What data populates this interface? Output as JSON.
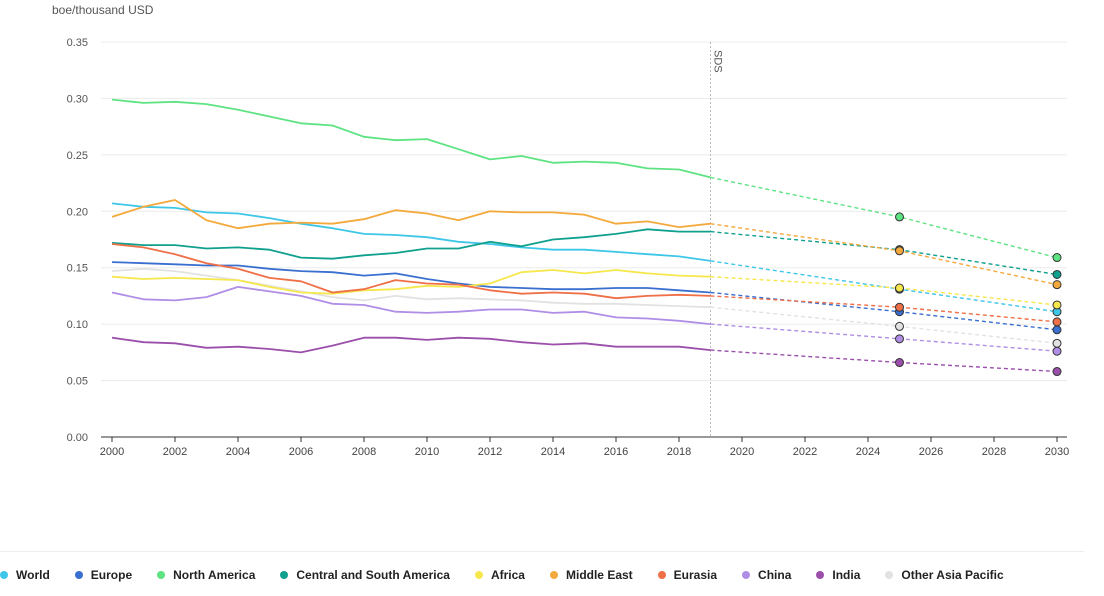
{
  "chart_data": {
    "type": "line",
    "ylabel": "boe/thousand USD",
    "ylim": [
      0,
      0.35
    ],
    "yticks": [
      "0.00",
      "0.05",
      "0.10",
      "0.15",
      "0.20",
      "0.25",
      "0.30",
      "0.35"
    ],
    "xlim": [
      2000,
      2030
    ],
    "xticks": [
      "2000",
      "2002",
      "2004",
      "2006",
      "2008",
      "2010",
      "2012",
      "2014",
      "2016",
      "2018",
      "2020",
      "2022",
      "2024",
      "2026",
      "2028",
      "2030"
    ],
    "annotation": {
      "label": "SDS",
      "x": 2019
    },
    "grid": true,
    "legend_position": "bottom",
    "series": [
      {
        "name": "World",
        "color": "#3ec6e8",
        "history": [
          [
            2000,
            0.207
          ],
          [
            2001,
            0.204
          ],
          [
            2002,
            0.203
          ],
          [
            2003,
            0.199
          ],
          [
            2004,
            0.198
          ],
          [
            2005,
            0.194
          ],
          [
            2006,
            0.189
          ],
          [
            2007,
            0.185
          ],
          [
            2008,
            0.18
          ],
          [
            2009,
            0.179
          ],
          [
            2010,
            0.177
          ],
          [
            2011,
            0.173
          ],
          [
            2012,
            0.171
          ],
          [
            2013,
            0.168
          ],
          [
            2014,
            0.166
          ],
          [
            2015,
            0.166
          ],
          [
            2016,
            0.164
          ],
          [
            2017,
            0.162
          ],
          [
            2018,
            0.16
          ],
          [
            2019,
            0.156
          ]
        ],
        "projection": [
          [
            2019,
            0.156
          ],
          [
            2025,
            0.131
          ],
          [
            2030,
            0.111
          ]
        ]
      },
      {
        "name": "Europe",
        "color": "#3a6fd0",
        "history": [
          [
            2000,
            0.155
          ],
          [
            2001,
            0.154
          ],
          [
            2002,
            0.153
          ],
          [
            2003,
            0.152
          ],
          [
            2004,
            0.152
          ],
          [
            2005,
            0.149
          ],
          [
            2006,
            0.147
          ],
          [
            2007,
            0.146
          ],
          [
            2008,
            0.143
          ],
          [
            2009,
            0.145
          ],
          [
            2010,
            0.14
          ],
          [
            2011,
            0.136
          ],
          [
            2012,
            0.133
          ],
          [
            2013,
            0.132
          ],
          [
            2014,
            0.131
          ],
          [
            2015,
            0.131
          ],
          [
            2016,
            0.132
          ],
          [
            2017,
            0.132
          ],
          [
            2018,
            0.13
          ],
          [
            2019,
            0.128
          ]
        ],
        "projection": [
          [
            2019,
            0.128
          ],
          [
            2025,
            0.111
          ],
          [
            2030,
            0.095
          ]
        ]
      },
      {
        "name": "North America",
        "color": "#5ee383",
        "history": [
          [
            2000,
            0.299
          ],
          [
            2001,
            0.296
          ],
          [
            2002,
            0.297
          ],
          [
            2003,
            0.295
          ],
          [
            2004,
            0.29
          ],
          [
            2005,
            0.284
          ],
          [
            2006,
            0.278
          ],
          [
            2007,
            0.276
          ],
          [
            2008,
            0.266
          ],
          [
            2009,
            0.263
          ],
          [
            2010,
            0.264
          ],
          [
            2011,
            0.255
          ],
          [
            2012,
            0.246
          ],
          [
            2013,
            0.249
          ],
          [
            2014,
            0.243
          ],
          [
            2015,
            0.244
          ],
          [
            2016,
            0.243
          ],
          [
            2017,
            0.238
          ],
          [
            2018,
            0.237
          ],
          [
            2019,
            0.23
          ]
        ],
        "projection": [
          [
            2019,
            0.23
          ],
          [
            2025,
            0.195
          ],
          [
            2030,
            0.159
          ]
        ]
      },
      {
        "name": "Central and South America",
        "color": "#0fa08e",
        "history": [
          [
            2000,
            0.172
          ],
          [
            2001,
            0.17
          ],
          [
            2002,
            0.17
          ],
          [
            2003,
            0.167
          ],
          [
            2004,
            0.168
          ],
          [
            2005,
            0.166
          ],
          [
            2006,
            0.159
          ],
          [
            2007,
            0.158
          ],
          [
            2008,
            0.161
          ],
          [
            2009,
            0.163
          ],
          [
            2010,
            0.167
          ],
          [
            2011,
            0.167
          ],
          [
            2012,
            0.173
          ],
          [
            2013,
            0.169
          ],
          [
            2014,
            0.175
          ],
          [
            2015,
            0.177
          ],
          [
            2016,
            0.18
          ],
          [
            2017,
            0.184
          ],
          [
            2018,
            0.182
          ],
          [
            2019,
            0.182
          ]
        ],
        "projection": [
          [
            2019,
            0.182
          ],
          [
            2025,
            0.166
          ],
          [
            2030,
            0.144
          ]
        ]
      },
      {
        "name": "Africa",
        "color": "#f6e74d",
        "history": [
          [
            2000,
            0.142
          ],
          [
            2001,
            0.14
          ],
          [
            2002,
            0.141
          ],
          [
            2003,
            0.14
          ],
          [
            2004,
            0.139
          ],
          [
            2005,
            0.133
          ],
          [
            2006,
            0.128
          ],
          [
            2007,
            0.127
          ],
          [
            2008,
            0.13
          ],
          [
            2009,
            0.131
          ],
          [
            2010,
            0.134
          ],
          [
            2011,
            0.133
          ],
          [
            2012,
            0.136
          ],
          [
            2013,
            0.146
          ],
          [
            2014,
            0.148
          ],
          [
            2015,
            0.145
          ],
          [
            2016,
            0.148
          ],
          [
            2017,
            0.145
          ],
          [
            2018,
            0.143
          ],
          [
            2019,
            0.142
          ]
        ],
        "projection": [
          [
            2019,
            0.142
          ],
          [
            2025,
            0.132
          ],
          [
            2030,
            0.117
          ]
        ]
      },
      {
        "name": "Middle East",
        "color": "#f3a93c",
        "history": [
          [
            2000,
            0.195
          ],
          [
            2001,
            0.204
          ],
          [
            2002,
            0.21
          ],
          [
            2003,
            0.192
          ],
          [
            2004,
            0.185
          ],
          [
            2005,
            0.189
          ],
          [
            2006,
            0.19
          ],
          [
            2007,
            0.189
          ],
          [
            2008,
            0.193
          ],
          [
            2009,
            0.201
          ],
          [
            2010,
            0.198
          ],
          [
            2011,
            0.192
          ],
          [
            2012,
            0.2
          ],
          [
            2013,
            0.199
          ],
          [
            2014,
            0.199
          ],
          [
            2015,
            0.197
          ],
          [
            2016,
            0.189
          ],
          [
            2017,
            0.191
          ],
          [
            2018,
            0.186
          ],
          [
            2019,
            0.189
          ]
        ],
        "projection": [
          [
            2019,
            0.189
          ],
          [
            2025,
            0.165
          ],
          [
            2030,
            0.135
          ]
        ]
      },
      {
        "name": "Eurasia",
        "color": "#ef6f47",
        "history": [
          [
            2000,
            0.171
          ],
          [
            2001,
            0.168
          ],
          [
            2002,
            0.162
          ],
          [
            2003,
            0.154
          ],
          [
            2004,
            0.149
          ],
          [
            2005,
            0.141
          ],
          [
            2006,
            0.138
          ],
          [
            2007,
            0.128
          ],
          [
            2008,
            0.131
          ],
          [
            2009,
            0.139
          ],
          [
            2010,
            0.136
          ],
          [
            2011,
            0.135
          ],
          [
            2012,
            0.13
          ],
          [
            2013,
            0.127
          ],
          [
            2014,
            0.128
          ],
          [
            2015,
            0.127
          ],
          [
            2016,
            0.123
          ],
          [
            2017,
            0.125
          ],
          [
            2018,
            0.126
          ],
          [
            2019,
            0.125
          ]
        ],
        "projection": [
          [
            2019,
            0.125
          ],
          [
            2025,
            0.115
          ],
          [
            2030,
            0.102
          ]
        ]
      },
      {
        "name": "China",
        "color": "#b08ee6",
        "history": [
          [
            2000,
            0.128
          ],
          [
            2001,
            0.122
          ],
          [
            2002,
            0.121
          ],
          [
            2003,
            0.124
          ],
          [
            2004,
            0.133
          ],
          [
            2005,
            0.129
          ],
          [
            2006,
            0.125
          ],
          [
            2007,
            0.118
          ],
          [
            2008,
            0.117
          ],
          [
            2009,
            0.111
          ],
          [
            2010,
            0.11
          ],
          [
            2011,
            0.111
          ],
          [
            2012,
            0.113
          ],
          [
            2013,
            0.113
          ],
          [
            2014,
            0.11
          ],
          [
            2015,
            0.111
          ],
          [
            2016,
            0.106
          ],
          [
            2017,
            0.105
          ],
          [
            2018,
            0.103
          ],
          [
            2019,
            0.1
          ]
        ],
        "projection": [
          [
            2019,
            0.1
          ],
          [
            2025,
            0.087
          ],
          [
            2030,
            0.076
          ]
        ]
      },
      {
        "name": "India",
        "color": "#9b4faa",
        "history": [
          [
            2000,
            0.088
          ],
          [
            2001,
            0.084
          ],
          [
            2002,
            0.083
          ],
          [
            2003,
            0.079
          ],
          [
            2004,
            0.08
          ],
          [
            2005,
            0.078
          ],
          [
            2006,
            0.075
          ],
          [
            2007,
            0.081
          ],
          [
            2008,
            0.088
          ],
          [
            2009,
            0.088
          ],
          [
            2010,
            0.086
          ],
          [
            2011,
            0.088
          ],
          [
            2012,
            0.087
          ],
          [
            2013,
            0.084
          ],
          [
            2014,
            0.082
          ],
          [
            2015,
            0.083
          ],
          [
            2016,
            0.08
          ],
          [
            2017,
            0.08
          ],
          [
            2018,
            0.08
          ],
          [
            2019,
            0.077
          ]
        ],
        "projection": [
          [
            2019,
            0.077
          ],
          [
            2025,
            0.066
          ],
          [
            2030,
            0.058
          ]
        ]
      },
      {
        "name": "Other Asia Pacific",
        "color": "#e2e2e2",
        "history": [
          [
            2000,
            0.147
          ],
          [
            2001,
            0.149
          ],
          [
            2002,
            0.147
          ],
          [
            2003,
            0.143
          ],
          [
            2004,
            0.139
          ],
          [
            2005,
            0.134
          ],
          [
            2006,
            0.129
          ],
          [
            2007,
            0.124
          ],
          [
            2008,
            0.121
          ],
          [
            2009,
            0.125
          ],
          [
            2010,
            0.122
          ],
          [
            2011,
            0.123
          ],
          [
            2012,
            0.122
          ],
          [
            2013,
            0.121
          ],
          [
            2014,
            0.119
          ],
          [
            2015,
            0.118
          ],
          [
            2016,
            0.118
          ],
          [
            2017,
            0.117
          ],
          [
            2018,
            0.116
          ],
          [
            2019,
            0.115
          ]
        ],
        "projection": [
          [
            2019,
            0.115
          ],
          [
            2025,
            0.098
          ],
          [
            2030,
            0.083
          ]
        ]
      }
    ]
  }
}
